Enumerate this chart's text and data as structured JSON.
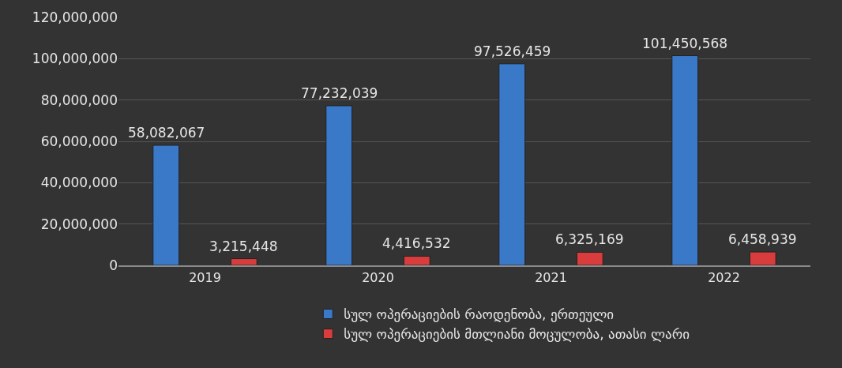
{
  "chart_data": {
    "type": "bar",
    "categories": [
      "2019",
      "2020",
      "2021",
      "2022"
    ],
    "series": [
      {
        "name": "სულ ოპერაციების რაოდენობა, ერთეული",
        "color": "#3a78c8",
        "values": [
          58082067,
          77232039,
          97526459,
          101450568
        ],
        "value_labels": [
          "58,082,067",
          "77,232,039",
          "97,526,459",
          "101,450,568"
        ]
      },
      {
        "name": "სულ ოპერაციების მთლიანი მოცულობა, ათასი ლარი",
        "color": "#d83c3c",
        "values": [
          3215448,
          4416532,
          6325169,
          6458939
        ],
        "value_labels": [
          "3,215,448",
          "4,416,532",
          "6,325,169",
          "6,458,939"
        ]
      }
    ],
    "ylim": [
      0,
      120000000
    ],
    "yticks": [
      0,
      {
        "value": 20000000,
        "label": "20,000,000"
      },
      {
        "value": 40000000,
        "label": "40,000,000"
      },
      {
        "value": 60000000,
        "label": "60,000,000"
      },
      {
        "value": 80000000,
        "label": "80,000,000"
      },
      {
        "value": 100000000,
        "label": "100,000,000"
      },
      {
        "value": 120000000,
        "label": "120,000,000"
      }
    ],
    "grid": "y",
    "legend": "bottom"
  }
}
